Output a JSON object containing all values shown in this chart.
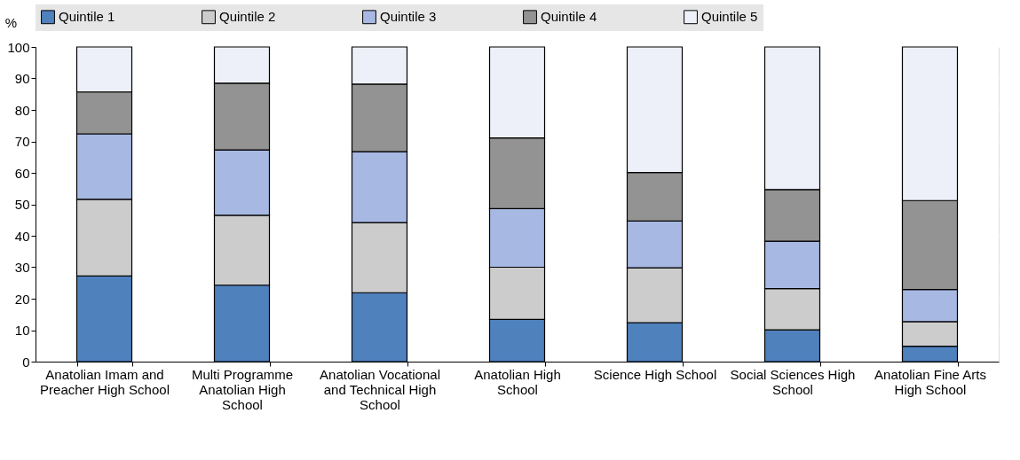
{
  "chart_data": {
    "type": "bar",
    "stacked": true,
    "ylabel": "%",
    "categories": [
      "Anatolian Imam and Preacher High School",
      "Multi Programme Anatolian High School",
      "Anatolian Vocational and Technical High School",
      "Anatolian High School",
      "Science High School",
      "Social Sciences High School",
      "Anatolian Fine Arts High School"
    ],
    "series": [
      {
        "name": "Quintile 1",
        "color": "#4f81bd",
        "values": [
          27.2,
          24.3,
          21.9,
          13.4,
          12.4,
          10.1,
          4.9
        ]
      },
      {
        "name": "Quintile 2",
        "color": "#cccccc",
        "values": [
          24.4,
          22.2,
          22.3,
          16.6,
          17.4,
          13.1,
          7.8
        ]
      },
      {
        "name": "Quintile 3",
        "color": "#a7b8e3",
        "values": [
          20.8,
          20.8,
          22.5,
          18.6,
          14.9,
          15.1,
          10.2
        ]
      },
      {
        "name": "Quintile 4",
        "color": "#939393",
        "values": [
          13.3,
          21.2,
          21.5,
          22.5,
          15.4,
          16.4,
          28.3
        ]
      },
      {
        "name": "Quintile 5",
        "color": "#edf0f8",
        "values": [
          14.3,
          11.5,
          11.8,
          28.9,
          39.9,
          45.3,
          48.8
        ]
      }
    ],
    "ylim": [
      0,
      100
    ],
    "yticks": [
      0,
      10,
      20,
      30,
      40,
      50,
      60,
      70,
      80,
      90,
      100
    ],
    "grid": true,
    "legend": "top"
  }
}
